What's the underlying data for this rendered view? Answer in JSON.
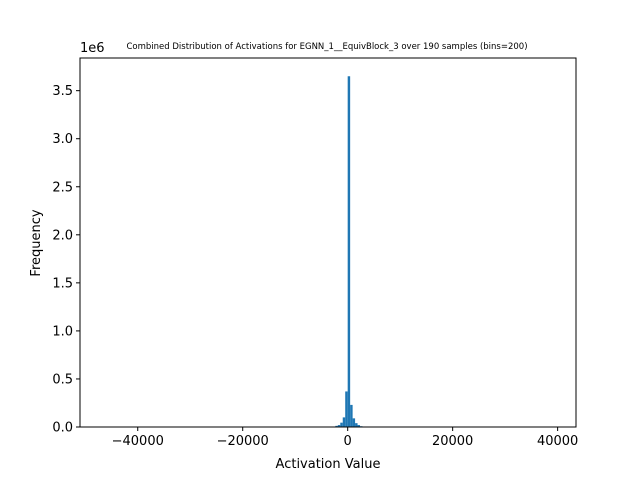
{
  "chart_data": {
    "type": "bar",
    "title": "Combined Distribution of Activations for EGNN_1__EquivBlock_3 over 190 samples  (bins=200)",
    "xlabel": "Activation Value",
    "ylabel": "Frequency",
    "y_offset_label": "1e6",
    "xlim": [
      -51000,
      43500
    ],
    "ylim": [
      0,
      3.84
    ],
    "x_ticks": [
      -40000,
      -20000,
      0,
      20000,
      40000
    ],
    "x_tick_labels": [
      "−40000",
      "−20000",
      "0",
      "20000",
      "40000"
    ],
    "y_ticks": [
      0.0,
      0.5,
      1.0,
      1.5,
      2.0,
      2.5,
      3.0,
      3.5
    ],
    "y_tick_labels": [
      "0.0",
      "0.5",
      "1.0",
      "1.5",
      "2.0",
      "2.5",
      "3.0",
      "3.5"
    ],
    "bar_color": "#1f77b4",
    "grid": false,
    "bins": [
      {
        "x0": -2800,
        "x1": -2350,
        "value": 0.005
      },
      {
        "x0": -2350,
        "x1": -1880,
        "value": 0.012
      },
      {
        "x0": -1880,
        "x1": -1410,
        "value": 0.02
      },
      {
        "x0": -1410,
        "x1": -940,
        "value": 0.045
      },
      {
        "x0": -940,
        "x1": -470,
        "value": 0.1
      },
      {
        "x0": -470,
        "x1": 0,
        "value": 0.37
      },
      {
        "x0": 0,
        "x1": 470,
        "value": 3.65
      },
      {
        "x0": 470,
        "x1": 940,
        "value": 0.23
      },
      {
        "x0": 940,
        "x1": 1410,
        "value": 0.09
      },
      {
        "x0": 1410,
        "x1": 1880,
        "value": 0.04
      },
      {
        "x0": 1880,
        "x1": 2350,
        "value": 0.02
      },
      {
        "x0": 2350,
        "x1": 2820,
        "value": 0.008
      }
    ]
  }
}
